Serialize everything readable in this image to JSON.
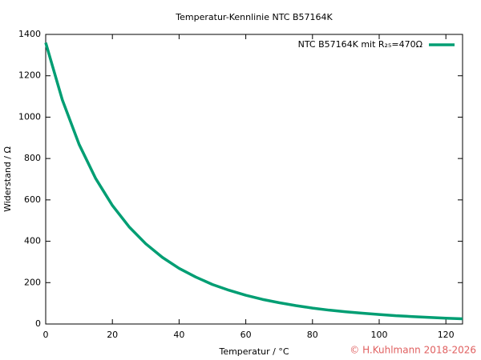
{
  "chart_data": {
    "type": "line",
    "title": "Temperatur-Kennlinie NTC B57164K",
    "x_label": "Temperatur / °C",
    "y_label": "Widerstand / Ω",
    "annotation": "© H.Kuhlmann 2018-2026",
    "x": [
      0,
      5,
      10,
      15,
      20,
      25,
      30,
      35,
      40,
      45,
      50,
      55,
      60,
      65,
      70,
      75,
      80,
      85,
      90,
      95,
      100,
      105,
      110,
      115,
      120,
      125
    ],
    "series": [
      {
        "name": "NTC  B57164K mit R₂₅=470Ω",
        "color": "#009e73",
        "values": [
          1360,
          1083,
          869,
          703,
          573,
          470,
          388,
          322,
          269,
          227,
          191,
          163,
          139,
          119,
          103,
          89,
          77,
          67,
          59,
          52,
          46,
          40,
          36,
          32,
          28,
          25
        ]
      }
    ],
    "xlim": [
      0,
      125
    ],
    "xticks": [
      0,
      20,
      40,
      60,
      80,
      100,
      120
    ],
    "ylim": [
      0,
      1400
    ],
    "yticks": [
      0,
      200,
      400,
      600,
      800,
      1000,
      1200,
      1400
    ],
    "grid": false,
    "legend_position": "top-right"
  }
}
